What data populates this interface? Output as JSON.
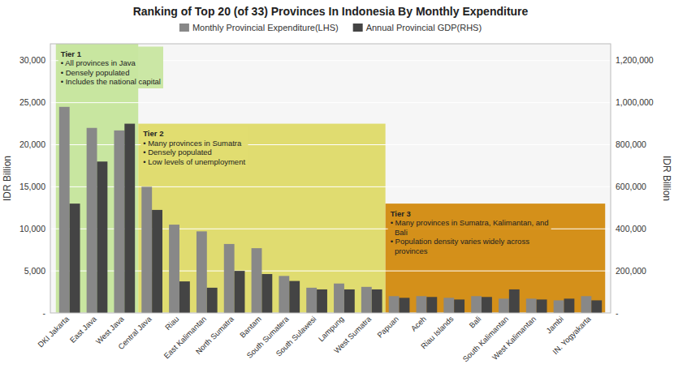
{
  "chart_data": {
    "type": "bar",
    "title": "Ranking of Top 20 (of 33) Provinces In Indonesia By Monthly Expenditure",
    "ylabel": "IDR Billion",
    "y2label": "IDR Billion",
    "categories": [
      "DKI Jakarta",
      "East Java",
      "West Java",
      "Central Java",
      "Riau",
      "East Kalimantan",
      "North Sumatra",
      "Bantam",
      "South Sumatera",
      "South Sulawesi",
      "Lampung",
      "West Sumatra",
      "Papuan",
      "Aceh",
      "Riau Islands",
      "Bali",
      "South Kalimantan",
      "West Kalimantan",
      "Jambi",
      "IN. Yogyakarta"
    ],
    "series": [
      {
        "name": "Monthly Provincial Expenditure(LHS)",
        "color": "#888888",
        "values": [
          24500,
          22000,
          21700,
          15000,
          10500,
          9700,
          8200,
          7700,
          4400,
          3000,
          3500,
          3100,
          2000,
          2000,
          1800,
          2000,
          1700,
          1700,
          1500,
          2000
        ]
      },
      {
        "name": "Annual Provincial GDP(RHS)",
        "color": "#444444",
        "axis": "y2",
        "values": [
          520000,
          720000,
          900000,
          490000,
          150000,
          120000,
          200000,
          185000,
          152000,
          112000,
          112000,
          112000,
          72000,
          76000,
          64000,
          76000,
          112000,
          64000,
          68000,
          60000
        ]
      }
    ],
    "ylim": [
      0,
      32000
    ],
    "yticks": [
      {
        "value": 0,
        "label": "-"
      },
      {
        "value": 5000,
        "label": "5,000"
      },
      {
        "value": 10000,
        "label": "10,000"
      },
      {
        "value": 15000,
        "label": "15,000"
      },
      {
        "value": 20000,
        "label": "20,000"
      },
      {
        "value": 25000,
        "label": "25,000"
      },
      {
        "value": 30000,
        "label": "30,000"
      }
    ],
    "y2lim": [
      0,
      1280000
    ],
    "y2ticks": [
      {
        "value": 0,
        "label": "-"
      },
      {
        "value": 200000,
        "label": "200,000"
      },
      {
        "value": 400000,
        "label": "400,000"
      },
      {
        "value": 600000,
        "label": "600,000"
      },
      {
        "value": 800000,
        "label": "800,000"
      },
      {
        "value": 1000000,
        "label": "1,000,000"
      },
      {
        "value": 1200000,
        "label": "1,200,000"
      }
    ],
    "grid": true,
    "legend": "top",
    "annotations": [
      {
        "text": "Tier 1\n• All provinces in Java\n• Densely populated\n• Includes the national capital",
        "color": "#c8e6a0",
        "span": [
          0,
          2
        ],
        "ylim": [
          0,
          32000
        ]
      },
      {
        "text": "Tier 2\n• Many provinces in Sumatra\n• Densely populated\n• Low levels of unemployment",
        "color": "#e0dc70",
        "span": [
          3,
          11
        ],
        "ylim": [
          0,
          22500
        ]
      },
      {
        "text": "Tier 3\n• Many provinces in Sumatra, Kalimantan, and\n  Bali\n• Population density varies widely across\n  provinces",
        "color": "#d4901a",
        "span": [
          12,
          19
        ],
        "ylim": [
          0,
          13000
        ]
      }
    ]
  }
}
